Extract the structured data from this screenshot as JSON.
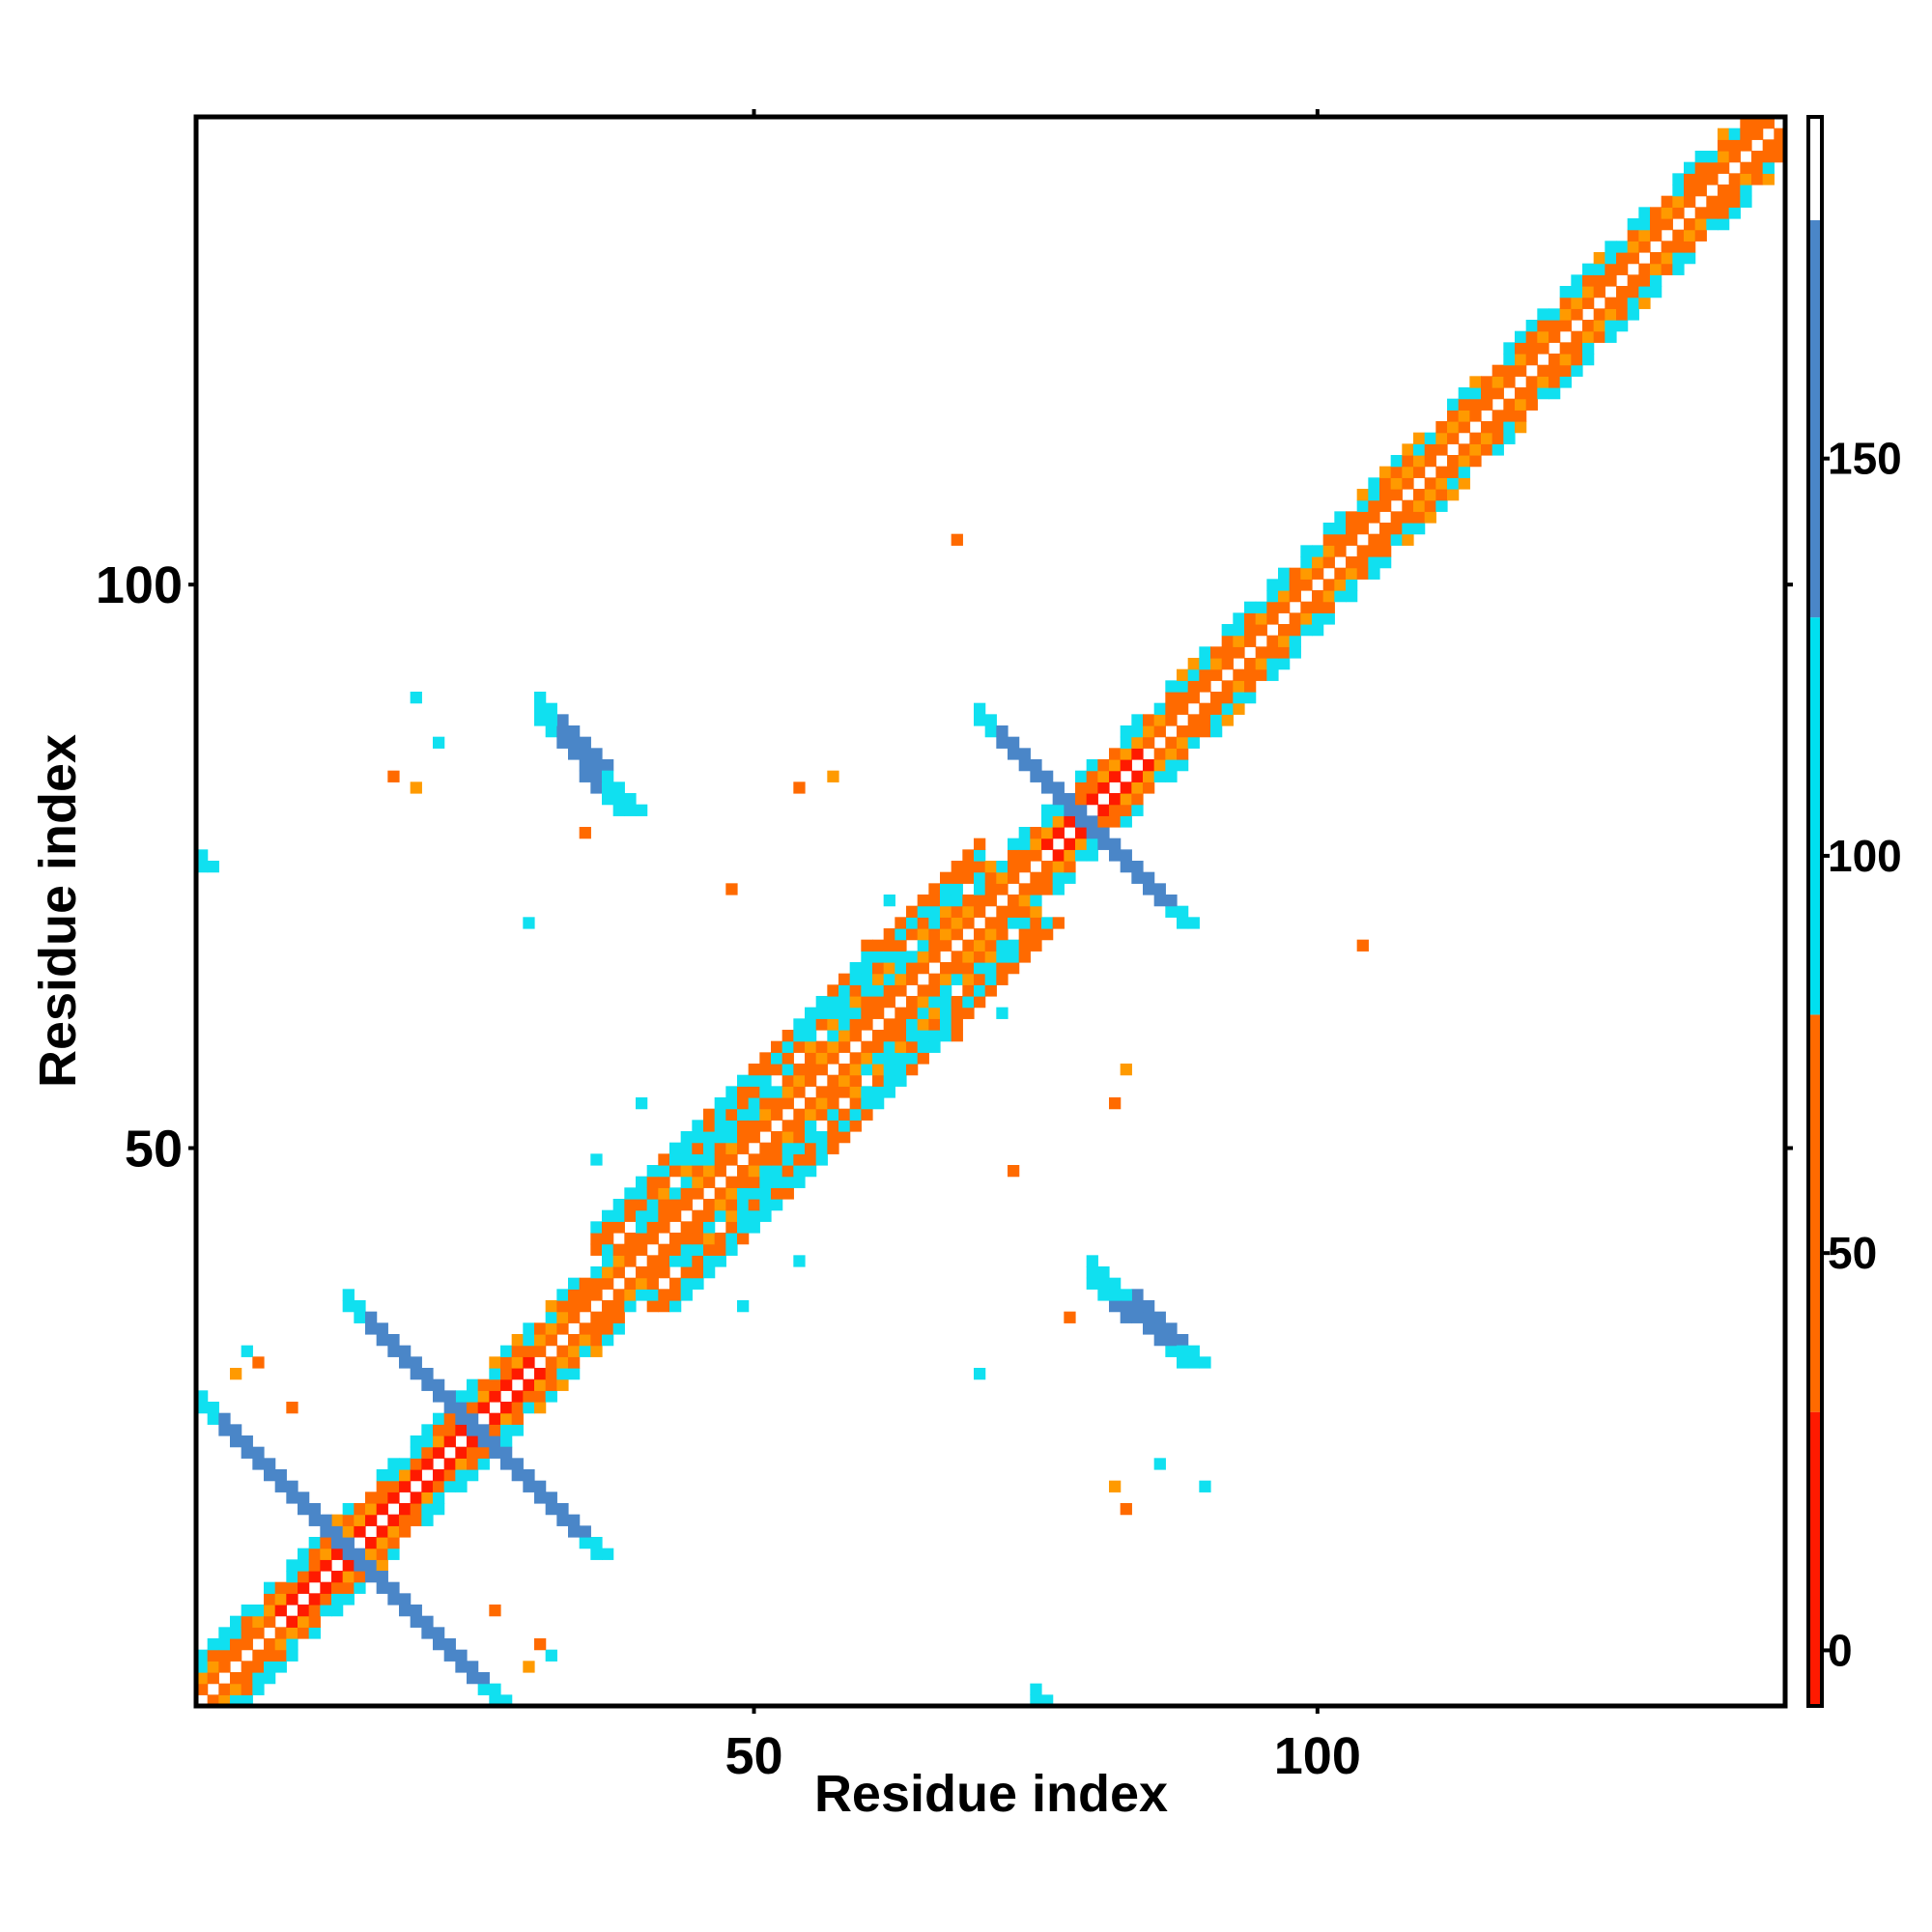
{
  "chart_data": {
    "type": "heatmap",
    "title": "",
    "xlabel": "Residue index",
    "ylabel": "Residue index",
    "xlim": [
      0,
      141
    ],
    "ylim": [
      0,
      141
    ],
    "x_ticks": [
      50,
      100
    ],
    "y_ticks": [
      50,
      100
    ],
    "grid": false,
    "colorbar": {
      "ticks": [
        0,
        50,
        100,
        150
      ],
      "range": [
        -7,
        193
      ],
      "bands": [
        {
          "from": -7,
          "to": 30,
          "color": "#ff1a00"
        },
        {
          "from": 30,
          "to": 80,
          "color": "#ff6a00"
        },
        {
          "from": 80,
          "to": 130,
          "color": "#00e0f0"
        },
        {
          "from": 130,
          "to": 180,
          "color": "#4a86c8"
        },
        {
          "from": 180,
          "to": 193,
          "color": "#ffffff"
        }
      ]
    },
    "colors": {
      "red": "#ff1a00",
      "orange": "#ff6a00",
      "amber": "#ff9a00",
      "cyan": "#10e0f0",
      "steel": "#4a86c8"
    },
    "features": [
      {
        "kind": "diagonal_band",
        "from": 1,
        "to": 141,
        "note": "near-diagonal contacts"
      },
      {
        "kind": "antiparallel_sheet",
        "center": [
          14,
          14
        ],
        "arm": 13,
        "color": "steel"
      },
      {
        "kind": "antiparallel_sheet",
        "center": [
          25,
          25
        ],
        "arm": 11,
        "color": "steel"
      },
      {
        "kind": "antiparallel_sheet",
        "center": [
          79,
          79
        ],
        "arm": 9,
        "color": "steel"
      },
      {
        "kind": "offdiag_strand",
        "from": [
          32,
          87
        ],
        "to": [
          38,
          80
        ],
        "color": "steel"
      },
      {
        "kind": "offdiag_strand",
        "from": [
          80,
          38
        ],
        "to": [
          88,
          31
        ],
        "color": "steel"
      }
    ]
  }
}
